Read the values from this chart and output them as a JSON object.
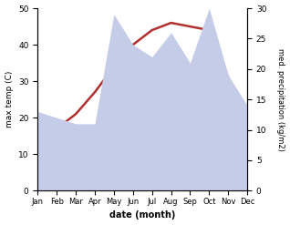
{
  "months": [
    "Jan",
    "Feb",
    "Mar",
    "Apr",
    "May",
    "Jun",
    "Jul",
    "Aug",
    "Sep",
    "Oct",
    "Nov",
    "Dec"
  ],
  "temp": [
    16,
    17,
    21,
    27,
    34,
    40,
    44,
    46,
    45,
    44,
    31,
    19
  ],
  "precip": [
    13,
    12,
    11,
    11,
    29,
    24,
    22,
    26,
    21,
    30,
    19,
    14
  ],
  "temp_color": "#b03030",
  "precip_fill": "#c5cce8",
  "temp_ylim": [
    0,
    50
  ],
  "precip_ylim": [
    0,
    30
  ],
  "xlabel": "date (month)",
  "ylabel_left": "max temp (C)",
  "ylabel_right": "med. precipitation (kg/m2)",
  "bg_color": "#ffffff"
}
